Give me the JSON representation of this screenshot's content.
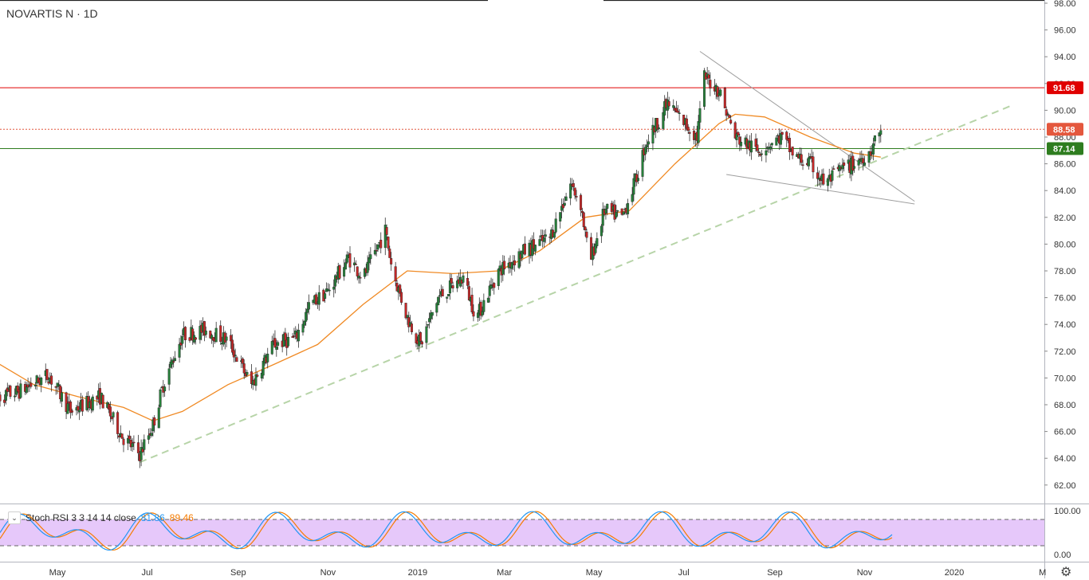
{
  "header": {
    "title": "NOVARTIS N · 1D"
  },
  "indicator": {
    "toggle_icon": "chevron-down-icon",
    "label": "Stoch RSI 3 3 14 14 close",
    "k_value": "81.86",
    "d_value": "89.46",
    "scale_labels": [
      "100.00",
      "0.00"
    ],
    "upper_band": 80,
    "lower_band": 20
  },
  "settings_icon": "gear-icon",
  "price_labels": [
    {
      "value": 91.68,
      "text": "91.68",
      "color": "#e00000",
      "style": "solid"
    },
    {
      "value": 88.58,
      "text": "88.58",
      "color": "#e4573d",
      "style": "dotted"
    },
    {
      "value": 87.14,
      "text": "87.14",
      "color": "#2e7d1f",
      "style": "solid"
    }
  ],
  "chart_data": {
    "type": "candlestick",
    "title": "NOVARTIS N · 1D",
    "ylim": [
      60.5,
      98
    ],
    "y_ticks": [
      98,
      96,
      94,
      92,
      90,
      88,
      86,
      84,
      82,
      80,
      78,
      76,
      74,
      72,
      70,
      68,
      66,
      64,
      62
    ],
    "y_tick_labels": [
      "98.00",
      "96.00",
      "94.00",
      "92.00",
      "90.00",
      "88.00",
      "86.00",
      "84.00",
      "82.00",
      "80.00",
      "78.00",
      "76.00",
      "74.00",
      "72.00",
      "70.00",
      "68.00",
      "66.00",
      "64.00",
      "62.00"
    ],
    "x_labels": [
      {
        "date": "2018-05-01",
        "label": "May"
      },
      {
        "date": "2018-07-01",
        "label": "Jul"
      },
      {
        "date": "2018-09-01",
        "label": "Sep"
      },
      {
        "date": "2018-11-01",
        "label": "Nov"
      },
      {
        "date": "2019-01-01",
        "label": "2019"
      },
      {
        "date": "2019-03-01",
        "label": "Mar"
      },
      {
        "date": "2019-05-01",
        "label": "May"
      },
      {
        "date": "2019-07-01",
        "label": "Jul"
      },
      {
        "date": "2019-09-01",
        "label": "Sep"
      },
      {
        "date": "2019-11-01",
        "label": "Nov"
      },
      {
        "date": "2020-01-01",
        "label": "2020"
      },
      {
        "date": "2020-03-01",
        "label": "M"
      }
    ],
    "price_path": [
      [
        "2018-03-20",
        68.5
      ],
      [
        "2018-04-05",
        69.0
      ],
      [
        "2018-04-25",
        70.2
      ],
      [
        "2018-05-10",
        67.5
      ],
      [
        "2018-05-30",
        68.6
      ],
      [
        "2018-06-15",
        65.5
      ],
      [
        "2018-06-26",
        64.3
      ],
      [
        "2018-07-05",
        66.5
      ],
      [
        "2018-07-12",
        69.5
      ],
      [
        "2018-07-25",
        73.2
      ],
      [
        "2018-08-10",
        73.6
      ],
      [
        "2018-08-25",
        72.8
      ],
      [
        "2018-09-05",
        70.5
      ],
      [
        "2018-09-10",
        69.5
      ],
      [
        "2018-09-25",
        72.5
      ],
      [
        "2018-10-10",
        73.0
      ],
      [
        "2018-10-20",
        75.5
      ],
      [
        "2018-11-01",
        76.5
      ],
      [
        "2018-11-15",
        79.0
      ],
      [
        "2018-11-25",
        77.5
      ],
      [
        "2018-12-10",
        81.0
      ],
      [
        "2018-12-15",
        78.0
      ],
      [
        "2018-12-25",
        74.5
      ],
      [
        "2019-01-03",
        72.5
      ],
      [
        "2019-01-15",
        76.0
      ],
      [
        "2019-02-01",
        77.5
      ],
      [
        "2019-02-10",
        74.5
      ],
      [
        "2019-02-25",
        78.0
      ],
      [
        "2019-03-15",
        79.5
      ],
      [
        "2019-04-01",
        80.5
      ],
      [
        "2019-04-15",
        84.5
      ],
      [
        "2019-04-22",
        83.0
      ],
      [
        "2019-04-28",
        78.5
      ],
      [
        "2019-05-08",
        82.5
      ],
      [
        "2019-05-20",
        82.0
      ],
      [
        "2019-05-30",
        85.0
      ],
      [
        "2019-06-05",
        87.5
      ],
      [
        "2019-06-20",
        90.5
      ],
      [
        "2019-06-28",
        89.5
      ],
      [
        "2019-07-10",
        88.0
      ],
      [
        "2019-07-15",
        92.5
      ],
      [
        "2019-07-25",
        91.5
      ],
      [
        "2019-08-05",
        88.0
      ],
      [
        "2019-08-20",
        87.0
      ],
      [
        "2019-09-05",
        88.0
      ],
      [
        "2019-09-15",
        86.5
      ],
      [
        "2019-09-25",
        86.0
      ],
      [
        "2019-10-05",
        84.5
      ],
      [
        "2019-10-15",
        85.5
      ],
      [
        "2019-10-25",
        86.0
      ],
      [
        "2019-11-05",
        87.0
      ],
      [
        "2019-11-12",
        88.6
      ]
    ],
    "moving_average": [
      [
        "2018-03-20",
        71.2
      ],
      [
        "2018-04-15",
        69.5
      ],
      [
        "2018-05-15",
        68.6
      ],
      [
        "2018-06-15",
        67.8
      ],
      [
        "2018-07-05",
        66.8
      ],
      [
        "2018-07-25",
        67.5
      ],
      [
        "2018-08-25",
        69.5
      ],
      [
        "2018-09-25",
        71.0
      ],
      [
        "2018-10-25",
        72.5
      ],
      [
        "2018-11-25",
        75.5
      ],
      [
        "2018-12-25",
        78.0
      ],
      [
        "2019-01-25",
        77.8
      ],
      [
        "2019-02-25",
        78.0
      ],
      [
        "2019-03-25",
        79.5
      ],
      [
        "2019-04-25",
        82.0
      ],
      [
        "2019-05-25",
        82.5
      ],
      [
        "2019-06-25",
        86.0
      ],
      [
        "2019-07-25",
        89.0
      ],
      [
        "2019-08-05",
        89.7
      ],
      [
        "2019-08-25",
        89.5
      ],
      [
        "2019-09-25",
        88.0
      ],
      [
        "2019-10-25",
        86.8
      ],
      [
        "2019-11-12",
        86.5
      ]
    ],
    "trendlines": [
      {
        "name": "support",
        "style": "dashed",
        "color": "#b7d4a8",
        "from": [
          "2018-06-26",
          63.7
        ],
        "to": [
          "2020-02-10",
          90.4
        ]
      },
      {
        "name": "wedge-upper",
        "style": "solid",
        "color": "#9e9e9e",
        "from": [
          "2019-07-12",
          94.4
        ],
        "to": [
          "2019-12-05",
          83.2
        ]
      },
      {
        "name": "wedge-lower",
        "style": "solid",
        "color": "#9e9e9e",
        "from": [
          "2019-07-30",
          85.2
        ],
        "to": [
          "2019-12-05",
          83.0
        ]
      }
    ],
    "horizontal_levels": [
      91.68,
      88.58,
      87.14
    ]
  }
}
